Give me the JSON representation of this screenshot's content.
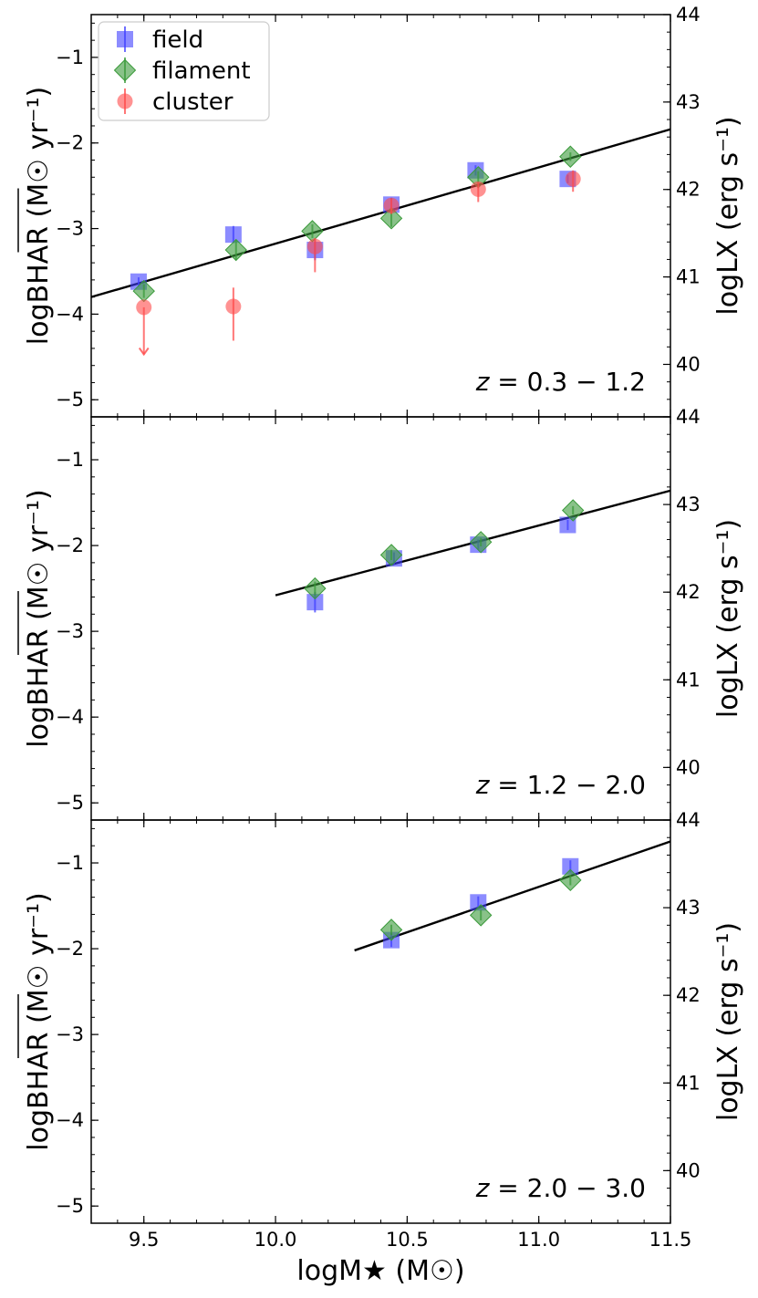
{
  "chart_data": {
    "type": "scatter",
    "xlabel": "logM★ (M☉)",
    "ylabel_left": "logBHAR (M☉ yr⁻¹)",
    "ylabel_right": "logLX (erg s⁻¹)",
    "xlim": [
      9.3,
      11.5
    ],
    "ylim": [
      -5.2,
      -0.5
    ],
    "ylim_right": [
      39.4,
      44.0
    ],
    "xticks": [
      9.5,
      10.0,
      10.5,
      11.0,
      11.5
    ],
    "xtick_labels": [
      "9.5",
      "10.0",
      "10.5",
      "11.0",
      "11.5"
    ],
    "yticks": [
      -1,
      -2,
      -3,
      -4,
      -5
    ],
    "ytick_labels": [
      "−1",
      "−2",
      "−3",
      "−4",
      "−5"
    ],
    "yticks_right": [
      40,
      41,
      42,
      43,
      44
    ],
    "ytick_right_labels": [
      "40",
      "41",
      "42",
      "43",
      "44"
    ],
    "legend": {
      "location": "top-left",
      "entries": [
        {
          "name": "field",
          "marker": "square",
          "color": "#4040ff"
        },
        {
          "name": "filament",
          "marker": "diamond",
          "color": "#3a9a3a"
        },
        {
          "name": "cluster",
          "marker": "circle",
          "color": "#ff4a4a"
        }
      ]
    },
    "panels": [
      {
        "label": "z = 0.3 − 1.2",
        "z_text": "0.3 − 1.2",
        "fit_line": {
          "x": [
            9.3,
            11.5
          ],
          "y": [
            -3.8,
            -1.84
          ]
        },
        "series": [
          {
            "name": "field",
            "x": [
              9.48,
              9.84,
              10.15,
              10.44,
              10.76,
              11.11
            ],
            "y": [
              -3.62,
              -3.07,
              -3.25,
              -2.72,
              -2.32,
              -2.42
            ],
            "yerr": [
              0.05,
              0.1,
              0.12,
              0.08,
              0.06,
              0.05
            ]
          },
          {
            "name": "filament",
            "x": [
              9.5,
              9.85,
              10.14,
              10.44,
              10.77,
              11.12
            ],
            "y": [
              -3.73,
              -3.25,
              -3.03,
              -2.88,
              -2.4,
              -2.16
            ],
            "yerr": [
              0.08,
              0.12,
              0.08,
              0.1,
              0.07,
              0.05
            ]
          },
          {
            "name": "cluster",
            "x": [
              9.5,
              9.84,
              10.15,
              10.44,
              10.77,
              11.13
            ],
            "y": [
              -3.92,
              -3.91,
              -3.21,
              -2.73,
              -2.54,
              -2.42
            ],
            "yerr_lo": [
              0.55,
              0.4,
              0.3,
              0.1,
              0.15,
              0.15
            ],
            "yerr_hi": [
              0.0,
              0.22,
              0.1,
              0.08,
              0.08,
              0.1
            ],
            "upper_limit": [
              true,
              false,
              false,
              false,
              false,
              false
            ]
          }
        ]
      },
      {
        "label": "z = 1.2 − 2.0",
        "z_text": "1.2 − 2.0",
        "fit_line": {
          "x": [
            10.0,
            11.5
          ],
          "y": [
            -2.58,
            -1.36
          ]
        },
        "series": [
          {
            "name": "field",
            "x": [
              10.15,
              10.45,
              10.77,
              11.11
            ],
            "y": [
              -2.66,
              -2.15,
              -1.99,
              -1.76
            ],
            "yerr": [
              0.12,
              0.07,
              0.06,
              0.06
            ]
          },
          {
            "name": "filament",
            "x": [
              10.15,
              10.44,
              10.78,
              11.13
            ],
            "y": [
              -2.5,
              -2.11,
              -1.96,
              -1.59
            ],
            "yerr": [
              0.08,
              0.06,
              0.05,
              0.05
            ]
          }
        ]
      },
      {
        "label": "z = 2.0 − 3.0",
        "z_text": "2.0 − 3.0",
        "fit_line": {
          "x": [
            10.3,
            11.5
          ],
          "y": [
            -2.02,
            -0.75
          ]
        },
        "series": [
          {
            "name": "field",
            "x": [
              10.44,
              10.77,
              11.12
            ],
            "y": [
              -1.9,
              -1.46,
              -1.04
            ],
            "yerr": [
              0.08,
              0.07,
              0.07
            ]
          },
          {
            "name": "filament",
            "x": [
              10.44,
              10.78,
              11.12
            ],
            "y": [
              -1.78,
              -1.61,
              -1.2
            ],
            "yerr": [
              0.06,
              0.06,
              0.06
            ]
          }
        ]
      }
    ]
  }
}
